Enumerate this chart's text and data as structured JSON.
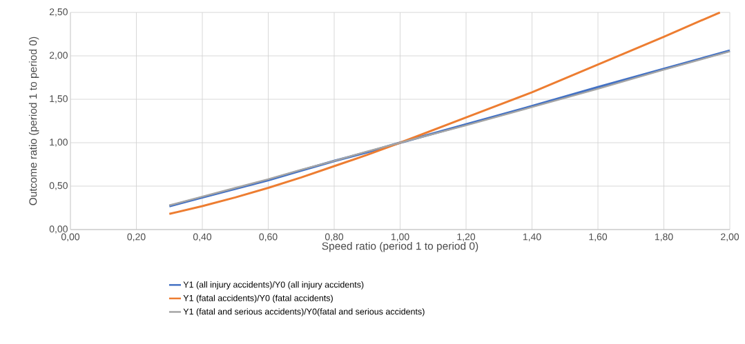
{
  "chart_data": {
    "type": "line",
    "xlabel": "Speed ratio (period 1 to period 0)",
    "ylabel": "Outcome ratio (period 1 to period 0)",
    "x": [
      0.3,
      0.4,
      0.5,
      0.6,
      0.7,
      0.8,
      0.9,
      1.0,
      1.2,
      1.4,
      1.6,
      1.8,
      2.0
    ],
    "series": [
      {
        "name": "Y1 (all injury accidents)/Y0 (all injury accidents)",
        "color": "#4472c4",
        "values": [
          0.27,
          0.37,
          0.47,
          0.57,
          0.68,
          0.79,
          0.89,
          1.0,
          1.21,
          1.42,
          1.64,
          1.85,
          2.06
        ]
      },
      {
        "name": "Y1 (fatal accidents)/Y0 (fatal accidents)",
        "color": "#ed7d31",
        "x": [
          0.3,
          0.4,
          0.5,
          0.6,
          0.7,
          0.8,
          0.9,
          1.0,
          1.2,
          1.4,
          1.6,
          1.8,
          1.97
        ],
        "values": [
          0.18,
          0.27,
          0.37,
          0.48,
          0.6,
          0.73,
          0.86,
          1.0,
          1.29,
          1.58,
          1.9,
          2.22,
          2.5
        ]
      },
      {
        "name": "Y1 (fatal and serious accidents)/Y0(fatal and serious accidents)",
        "color": "#a5a5a5",
        "values": [
          0.28,
          0.38,
          0.48,
          0.58,
          0.69,
          0.79,
          0.9,
          1.0,
          1.2,
          1.41,
          1.62,
          1.84,
          2.05
        ]
      }
    ],
    "xlim": [
      0,
      2
    ],
    "xticks": [
      {
        "value": 0,
        "label": "0,00"
      },
      {
        "value": 0.2,
        "label": "0,20"
      },
      {
        "value": 0.4,
        "label": "0,40"
      },
      {
        "value": 0.6,
        "label": "0,60"
      },
      {
        "value": 0.8,
        "label": "0,80"
      },
      {
        "value": 1.0,
        "label": "1,00"
      },
      {
        "value": 1.2,
        "label": "1,20"
      },
      {
        "value": 1.4,
        "label": "1,40"
      },
      {
        "value": 1.6,
        "label": "1,60"
      },
      {
        "value": 1.8,
        "label": "1,80"
      },
      {
        "value": 2.0,
        "label": "2,00"
      }
    ],
    "ylim": [
      0,
      2.5
    ],
    "yticks": [
      {
        "value": 0,
        "label": "0,00"
      },
      {
        "value": 0.5,
        "label": "0,50"
      },
      {
        "value": 1.0,
        "label": "1,00"
      },
      {
        "value": 1.5,
        "label": "1,50"
      },
      {
        "value": 2.0,
        "label": "2,00"
      },
      {
        "value": 2.5,
        "label": "2,50"
      }
    ],
    "grid": true,
    "legend": "bottom",
    "marker": "none",
    "line_style": "solid"
  }
}
